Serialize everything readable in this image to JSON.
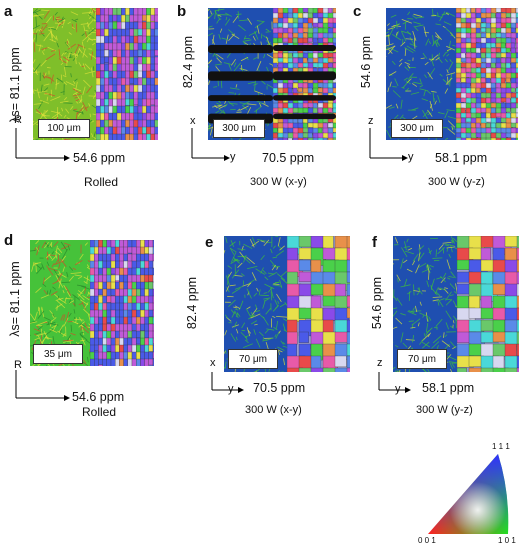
{
  "colors": {
    "kam_blue": "#1f4fb0",
    "kam_green": "#3fbf3a",
    "kam_yellow": "#d8e03a",
    "ipf_red": "#e8383a",
    "ipf_green": "#3ec83a",
    "ipf_blue": "#3a4ee8"
  },
  "panels": [
    {
      "letter": "a",
      "vert": "λs= 81.1 ppm",
      "axis_v": "R",
      "horiz": "54.6 ppm",
      "axis_h": "",
      "scale": "100 μm",
      "condition": "Rolled"
    },
    {
      "letter": "b",
      "vert": "82.4 ppm",
      "axis_v": "x",
      "horiz": "70.5 ppm",
      "axis_h": "y",
      "scale": "300 μm",
      "condition": "300 W (x-y)"
    },
    {
      "letter": "c",
      "vert": "54.6 ppm",
      "axis_v": "z",
      "horiz": "58.1 ppm",
      "axis_h": "y",
      "scale": "300 μm",
      "condition": "300 W (y-z)"
    },
    {
      "letter": "d",
      "vert": "λs= 81.1 ppm",
      "axis_v": "R",
      "horiz": "54.6 ppm",
      "axis_h": "",
      "scale": "35 μm",
      "condition": "Rolled"
    },
    {
      "letter": "e",
      "vert": "82.4 ppm",
      "axis_v": "x",
      "horiz": "70.5 ppm",
      "axis_h": "y",
      "scale": "70 μm",
      "condition": "300 W (x-y)"
    },
    {
      "letter": "f",
      "vert": "54.6 ppm",
      "axis_v": "z",
      "horiz": "58.1 ppm",
      "axis_h": "y",
      "scale": "70 μm",
      "condition": "300 W (y-z)"
    }
  ],
  "legend": {
    "top": "1 1 1",
    "left": "0 0 1",
    "right": "1 0 1"
  }
}
